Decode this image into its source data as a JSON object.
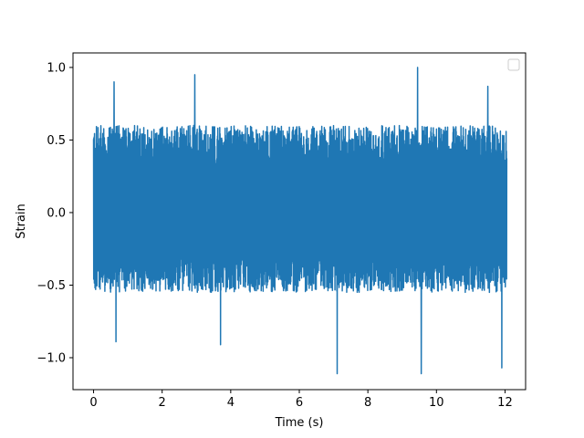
{
  "chart_data": {
    "type": "line",
    "title": "",
    "xlabel": "Time (s)",
    "ylabel": "Strain",
    "xlim": [
      -0.6,
      12.6
    ],
    "ylim": [
      -1.22,
      1.1
    ],
    "xticks": [
      0,
      2,
      4,
      6,
      8,
      10,
      12
    ],
    "xtick_labels": [
      "0",
      "2",
      "4",
      "6",
      "8",
      "10",
      "12"
    ],
    "yticks": [
      -1.0,
      -0.5,
      0.0,
      0.5,
      1.0
    ],
    "ytick_labels": [
      "−1.0",
      "−0.5",
      "0.0",
      "0.5",
      "1.0"
    ],
    "grid": false,
    "legend": {
      "placement": "top-right",
      "entries": []
    },
    "series": [
      {
        "color": "#1f77b4",
        "x_start": 0.0,
        "x_end": 12.05,
        "typical_band": [
          -0.55,
          0.6
        ],
        "peaks": [
          {
            "x": 0.6,
            "y": 0.9
          },
          {
            "x": 2.95,
            "y": 0.95
          },
          {
            "x": 9.45,
            "y": 1.0
          },
          {
            "x": 11.5,
            "y": 0.87
          }
        ],
        "troughs": [
          {
            "x": 0.65,
            "y": -0.89
          },
          {
            "x": 3.7,
            "y": -0.91
          },
          {
            "x": 7.1,
            "y": -1.11
          },
          {
            "x": 9.55,
            "y": -1.11
          },
          {
            "x": 11.9,
            "y": -1.07
          }
        ]
      }
    ]
  }
}
